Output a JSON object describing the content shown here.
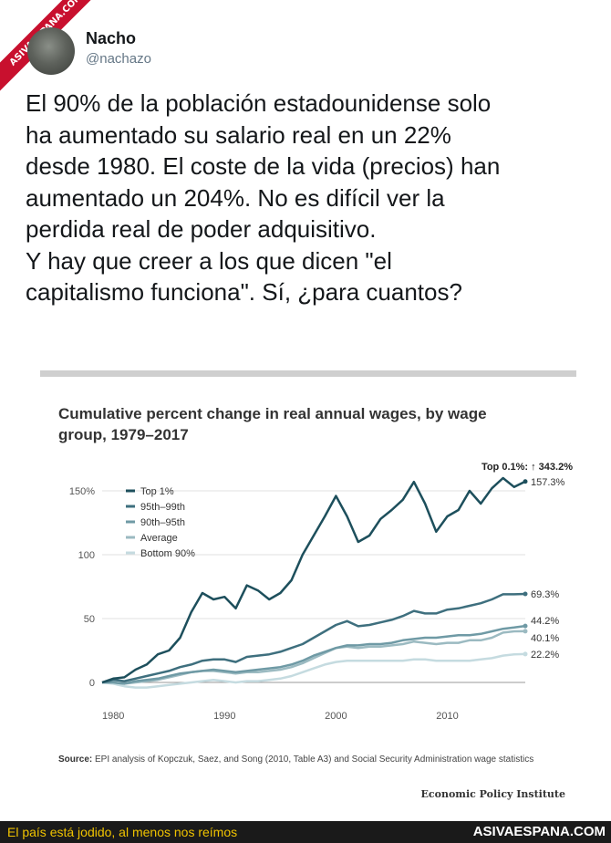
{
  "watermark": "ASIVAESPANA.COM",
  "author": {
    "name": "Nacho",
    "handle": "@nachazo"
  },
  "tweet_lines": [
    "El 90% de la población estadounidense solo",
    "ha aumentado su salario real en un 22%",
    "desde 1980. El coste de la vida (precios) han",
    "aumentado un 204%. No es difícil ver la",
    "perdida real de poder adquisitivo.",
    "Y hay que creer a los que dicen \"el",
    "capitalismo funciona\". Sí, ¿para cuantos?"
  ],
  "chart_data": {
    "type": "line",
    "title_lines": [
      "Cumulative percent change in real annual wages, by wage",
      "group, 1979–2017"
    ],
    "ylim": [
      0,
      150
    ],
    "xlim": [
      1979,
      2017
    ],
    "y_ticks": [
      "0",
      "50",
      "100",
      "150%"
    ],
    "x_ticks": [
      "1980",
      "1990",
      "2000",
      "2010"
    ],
    "grid": true,
    "legend_position": "top-left",
    "annotation": "Top 0.1%: ↑ 343.2%",
    "x": [
      1979,
      1980,
      1981,
      1982,
      1983,
      1984,
      1985,
      1986,
      1987,
      1988,
      1989,
      1990,
      1991,
      1992,
      1993,
      1994,
      1995,
      1996,
      1997,
      1998,
      1999,
      2000,
      2001,
      2002,
      2003,
      2004,
      2005,
      2006,
      2007,
      2008,
      2009,
      2010,
      2011,
      2012,
      2013,
      2014,
      2015,
      2016,
      2017
    ],
    "series": [
      {
        "name": "Top 1%",
        "color": "#1d4f5c",
        "end_label": "157.3%",
        "values": [
          0,
          3,
          4,
          10,
          14,
          22,
          25,
          35,
          55,
          70,
          65,
          67,
          58,
          76,
          72,
          65,
          70,
          80,
          100,
          115,
          130,
          146,
          130,
          110,
          115,
          128,
          135,
          143,
          157,
          140,
          118,
          130,
          135,
          150,
          140,
          152,
          160,
          153,
          157.3
        ]
      },
      {
        "name": "95th–99th",
        "color": "#3e6f7e",
        "end_label": "69.3%",
        "values": [
          0,
          2,
          1,
          3,
          5,
          7,
          9,
          12,
          14,
          17,
          18,
          18,
          16,
          20,
          21,
          22,
          24,
          27,
          30,
          35,
          40,
          45,
          48,
          44,
          45,
          47,
          49,
          52,
          56,
          54,
          54,
          57,
          58,
          60,
          62,
          65,
          69,
          69,
          69.3
        ]
      },
      {
        "name": "90th–95th",
        "color": "#6f9aa5",
        "end_label": "44.2%",
        "values": [
          0,
          0,
          -1,
          1,
          2,
          3,
          5,
          7,
          8,
          9,
          10,
          9,
          8,
          9,
          10,
          11,
          12,
          14,
          17,
          21,
          24,
          27,
          29,
          29,
          30,
          30,
          31,
          33,
          34,
          35,
          35,
          36,
          37,
          37,
          38,
          40,
          42,
          43,
          44.2
        ]
      },
      {
        "name": "Average",
        "color": "#9bbac1",
        "end_label": "40.1%",
        "values": [
          0,
          0,
          -1,
          0,
          1,
          2,
          4,
          6,
          8,
          9,
          9,
          8,
          7,
          8,
          8,
          9,
          10,
          12,
          15,
          19,
          23,
          27,
          28,
          27,
          28,
          28,
          29,
          30,
          32,
          31,
          30,
          31,
          31,
          33,
          33,
          35,
          39,
          40,
          40.1
        ]
      },
      {
        "name": "Bottom 90%",
        "color": "#c5dbe0",
        "end_label": "22.2%",
        "values": [
          0,
          -1,
          -3,
          -4,
          -4,
          -3,
          -2,
          -1,
          0,
          1,
          2,
          1,
          0,
          1,
          1,
          2,
          3,
          5,
          8,
          11,
          14,
          16,
          17,
          17,
          17,
          17,
          17,
          17,
          18,
          18,
          17,
          17,
          17,
          17,
          18,
          19,
          21,
          22,
          22.2
        ]
      }
    ]
  },
  "source_label": "Source:",
  "source_text": "EPI analysis of Kopczuk, Saez, and Song (2010, Table A3) and Social Security Administration wage statistics",
  "credit": "Economic Policy Institute",
  "footer": {
    "text": "El país está jodido, al menos nos reímos",
    "site": "ASIVAESPANA.COM"
  },
  "colors": {
    "footer_text": "#f0c300",
    "watermark": "#c8102e"
  }
}
